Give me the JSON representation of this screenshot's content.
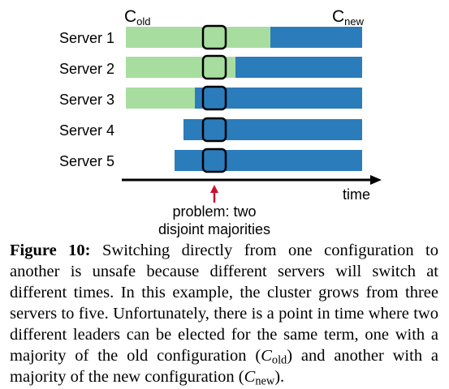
{
  "diagram": {
    "c_old": {
      "base": "C",
      "sub": "old"
    },
    "c_new": {
      "base": "C",
      "sub": "new"
    },
    "servers": [
      {
        "label": "Server 1"
      },
      {
        "label": "Server 2"
      },
      {
        "label": "Server 3"
      },
      {
        "label": "Server 4"
      },
      {
        "label": "Server 5"
      }
    ],
    "time_label": "time",
    "problem_line1": "problem: two",
    "problem_line2": "disjoint majorities",
    "colors": {
      "old_config": "#a8dda0",
      "new_config": "#2b7cbb",
      "axis": "#000000",
      "arrow": "#c8102e"
    }
  },
  "caption": {
    "label": "Figure 10:",
    "text_1": " Switching directly from one configuration to another is unsafe because different servers will switch at different times. In this example, the cluster grows from three servers to five. Unfortunately, there is a point in time where two different leaders can be elected for the same term, one with a majority of the old configuration (",
    "c_old_base": "C",
    "c_old_sub": "old",
    "text_2": ") and another with a majority of the new configuration (",
    "c_new_base": "C",
    "c_new_sub": "new",
    "text_3": ")."
  }
}
